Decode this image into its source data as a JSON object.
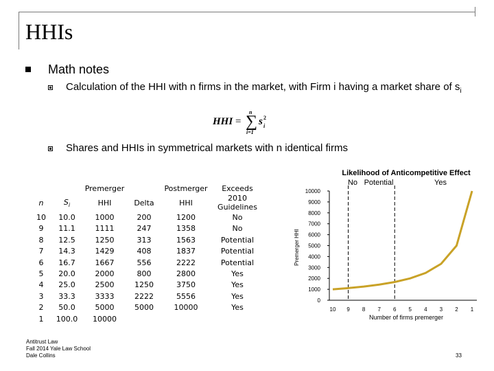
{
  "slide": {
    "title": "HHIs",
    "bullet": "Math notes",
    "sub1": "Calculation of the HHI with n firms in the market, with Firm i having a market share of s",
    "sub1_sub": "i",
    "sub2": "Shares and HHIs in symmetrical markets with n identical firms",
    "formula": {
      "lhs": "HHI",
      "eq": "=",
      "upper": "n",
      "lower": "i=1",
      "var": "s",
      "sub": "i",
      "sup": "2"
    }
  },
  "table": {
    "headers": {
      "n": "n",
      "s": "S",
      "s_sub": "i",
      "pre_top": "Premerger",
      "pre_bot": "HHI",
      "delta": "Delta",
      "post_top": "Postmerger",
      "post_bot": "HHI",
      "ex_top": "Exceeds",
      "ex_bot": "2010 Guidelines"
    },
    "rows": [
      [
        "10",
        "10.0",
        "1000",
        "200",
        "1200",
        "No"
      ],
      [
        "9",
        "11.1",
        "1111",
        "247",
        "1358",
        "No"
      ],
      [
        "8",
        "12.5",
        "1250",
        "313",
        "1563",
        "Potential"
      ],
      [
        "7",
        "14.3",
        "1429",
        "408",
        "1837",
        "Potential"
      ],
      [
        "6",
        "16.7",
        "1667",
        "556",
        "2222",
        "Potential"
      ],
      [
        "5",
        "20.0",
        "2000",
        "800",
        "2800",
        "Yes"
      ],
      [
        "4",
        "25.0",
        "2500",
        "1250",
        "3750",
        "Yes"
      ],
      [
        "3",
        "33.3",
        "3333",
        "2222",
        "5556",
        "Yes"
      ],
      [
        "2",
        "50.0",
        "5000",
        "5000",
        "10000",
        "Yes"
      ],
      [
        "1",
        "100.0",
        "10000",
        "",
        "",
        ""
      ]
    ]
  },
  "chart_data": {
    "type": "line",
    "title": "Likelihood of Anticompetitive Effect",
    "zone_labels": [
      "No",
      "Potential",
      "Yes"
    ],
    "xlabel": "Number of firms premerger",
    "ylabel": "Premerger HHI",
    "categories": [
      "10",
      "9",
      "8",
      "7",
      "6",
      "5",
      "4",
      "3",
      "2",
      "1"
    ],
    "values": [
      1000,
      1111,
      1250,
      1429,
      1667,
      2000,
      2500,
      3333,
      5000,
      10000
    ],
    "yticks": [
      0,
      1000,
      2000,
      3000,
      4000,
      5000,
      6000,
      7000,
      8000,
      9000,
      10000
    ],
    "ylim": [
      0,
      10000
    ],
    "dashed_dividers": [
      "9",
      "6"
    ],
    "line_color": "#c9a227",
    "grid": false
  },
  "footer": {
    "lines": [
      "Antitrust Law",
      "Fall 2014   Yale Law School",
      "Dale Collins"
    ],
    "page": "33"
  }
}
